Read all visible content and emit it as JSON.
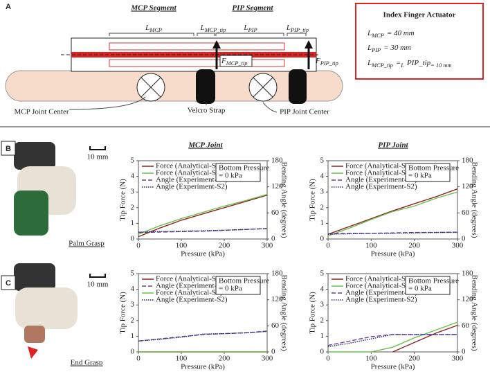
{
  "panel_labels": [
    "A",
    "B",
    "C"
  ],
  "diagram": {
    "segments": [
      "MCP Segment",
      "PIP Segment"
    ],
    "lengths": [
      [
        "L",
        "MCP"
      ],
      [
        "L",
        "MCP_tip"
      ],
      [
        "L",
        "PIP"
      ],
      [
        "L",
        "PIP_tip"
      ]
    ],
    "forces": [
      [
        "F",
        "MCP_tip"
      ],
      [
        "F",
        "PIP_tip"
      ]
    ],
    "joint_labels": [
      "MCP Joint Center",
      "Velcro Strap",
      "PIP Joint Center"
    ],
    "box": {
      "title": "Index Finger Actuator",
      "lines": [
        [
          "L",
          "MCP",
          "= 40 mm"
        ],
        [
          "L",
          "PIP",
          "= 30 mm"
        ],
        [
          "L",
          "MCP_tip",
          "=",
          "L",
          "PIP_tip",
          "= 10 mm"
        ]
      ]
    }
  },
  "column_titles": [
    "MCP Joint",
    "PIP Joint"
  ],
  "scale_bar": "10 mm",
  "grasps": [
    "Palm Grasp",
    "End Grasp"
  ],
  "chart_data": [
    {
      "type": "line",
      "xlabel": "Pressure (kPa)",
      "ylabel": "Tip Force (N)",
      "y2label": "Bending Angle (degrees)",
      "annotation": [
        "Bottom Pressure",
        "= 0 kPa"
      ],
      "x": [
        0,
        50,
        100,
        150,
        200,
        250,
        300
      ],
      "xlim": [
        0,
        300
      ],
      "xticks": [
        0,
        100,
        200,
        300
      ],
      "ylim": [
        0,
        5
      ],
      "yticks": [
        0,
        1,
        2,
        3,
        4,
        5
      ],
      "y2lim": [
        0,
        180
      ],
      "y2ticks": [
        0,
        60,
        120,
        180
      ],
      "series": [
        {
          "name": "Force (Analytical-S1)",
          "color": "#8b2323",
          "dash": "",
          "values": [
            0.15,
            0.7,
            1.2,
            1.6,
            2.0,
            2.4,
            2.8
          ]
        },
        {
          "name": "Force (Analytical-S2)",
          "color": "#6cbf4f",
          "dash": "",
          "values": [
            0.3,
            0.85,
            1.3,
            1.7,
            2.1,
            2.45,
            2.85
          ]
        },
        {
          "name": "Angle (Experiment-S1)",
          "color": "#6a3d9a",
          "dash": "6 3",
          "axis": "y2",
          "values": [
            15,
            16,
            17,
            18,
            20,
            22,
            24
          ]
        },
        {
          "name": "Angle (Experiment-S2)",
          "color": "#1f2a6b",
          "dash": "1.5 1.5",
          "axis": "y2",
          "values": [
            16,
            17,
            18,
            19,
            20,
            22,
            24
          ]
        }
      ]
    },
    {
      "type": "line",
      "xlabel": "Pressure (kPa)",
      "ylabel": "Tip Force (N)",
      "y2label": "Bending Angle (degrees)",
      "annotation": [
        "Bottom Pressure",
        "= 0 kPa"
      ],
      "x": [
        0,
        50,
        100,
        150,
        200,
        250,
        300
      ],
      "xlim": [
        0,
        300
      ],
      "xticks": [
        0,
        100,
        200,
        300
      ],
      "ylim": [
        0,
        5
      ],
      "yticks": [
        0,
        1,
        2,
        3,
        4,
        5
      ],
      "y2lim": [
        0,
        180
      ],
      "y2ticks": [
        0,
        60,
        120,
        180
      ],
      "series": [
        {
          "name": "Force (Analytical-S1)",
          "color": "#8b2323",
          "dash": "",
          "values": [
            0.3,
            0.8,
            1.3,
            1.8,
            2.25,
            2.7,
            3.2
          ]
        },
        {
          "name": "Force (Analytical-S2)",
          "color": "#6cbf4f",
          "dash": "",
          "values": [
            0.2,
            0.7,
            1.25,
            1.75,
            2.1,
            2.6,
            3.0
          ]
        },
        {
          "name": "Angle (Experiment-S1)",
          "color": "#6a3d9a",
          "dash": "6 3",
          "axis": "y2",
          "values": [
            12,
            13,
            13,
            14,
            15,
            15,
            16
          ]
        },
        {
          "name": "Angle (Experiment-S2)",
          "color": "#1f2a6b",
          "dash": "1.5 1.5",
          "axis": "y2",
          "values": [
            11,
            12,
            13,
            13,
            14,
            15,
            15
          ]
        }
      ]
    },
    {
      "type": "line",
      "xlabel": "Pressure (kPa)",
      "ylabel": "Tip Force (N)",
      "y2label": "Bending Angle (degrees)",
      "annotation": [
        "Bottom Pressure",
        "= 0 kPa"
      ],
      "x": [
        0,
        50,
        100,
        150,
        200,
        250,
        300
      ],
      "xlim": [
        0,
        300
      ],
      "xticks": [
        0,
        100,
        200,
        300
      ],
      "ylim": [
        0,
        5
      ],
      "yticks": [
        0,
        1,
        2,
        3,
        4,
        5
      ],
      "y2lim": [
        0,
        180
      ],
      "y2ticks": [
        0,
        60,
        120,
        180
      ],
      "series": [
        {
          "name": "Force (Analytical-S1)",
          "color": "#8b2323",
          "dash": "",
          "values": [
            0,
            0,
            0,
            0,
            0,
            0,
            0
          ]
        },
        {
          "name": "Angle (Experiment-S1)",
          "color": "#6a3d9a",
          "dash": "6 3",
          "axis": "y2",
          "values": [
            25,
            30,
            35,
            40,
            42,
            44,
            48
          ]
        },
        {
          "name": "Force (Analytical-S2)",
          "color": "#6cbf4f",
          "dash": "",
          "values": [
            0,
            0,
            0,
            0,
            0,
            0,
            0
          ]
        },
        {
          "name": "Angle (Experiment-S2)",
          "color": "#1f2a6b",
          "dash": "1.5 1.5",
          "axis": "y2",
          "values": [
            25,
            29,
            34,
            41,
            42,
            44,
            47
          ]
        }
      ]
    },
    {
      "type": "line",
      "xlabel": "Pressure (kPa)",
      "ylabel": "Tip Force (N)",
      "y2label": "Bending Angle (degrees)",
      "annotation": [
        "Bottom Pressure",
        "= 0 kPa"
      ],
      "x": [
        0,
        50,
        100,
        150,
        200,
        250,
        300
      ],
      "xlim": [
        0,
        300
      ],
      "xticks": [
        0,
        100,
        200,
        300
      ],
      "ylim": [
        0,
        5
      ],
      "yticks": [
        0,
        1,
        2,
        3,
        4,
        5
      ],
      "y2lim": [
        0,
        180
      ],
      "y2ticks": [
        0,
        60,
        120,
        180
      ],
      "series": [
        {
          "name": "Force (Analytical-S1)",
          "color": "#8b2323",
          "dash": "",
          "values": [
            null,
            null,
            null,
            0,
            0.6,
            1.2,
            1.7
          ]
        },
        {
          "name": "Force (Analytical-S2)",
          "color": "#6cbf4f",
          "dash": "",
          "values": [
            0,
            0,
            0,
            0.3,
            0.9,
            1.4,
            1.9
          ]
        },
        {
          "name": "Angle (Experiment-S1)",
          "color": "#6a3d9a",
          "dash": "6 3",
          "axis": "y2",
          "values": [
            15,
            25,
            35,
            40,
            40,
            40,
            40
          ]
        },
        {
          "name": "Angle (Experiment-S2)",
          "color": "#1f2a6b",
          "dash": "1.5 1.5",
          "axis": "y2",
          "values": [
            12,
            20,
            30,
            40,
            40,
            40,
            40
          ]
        }
      ]
    }
  ]
}
